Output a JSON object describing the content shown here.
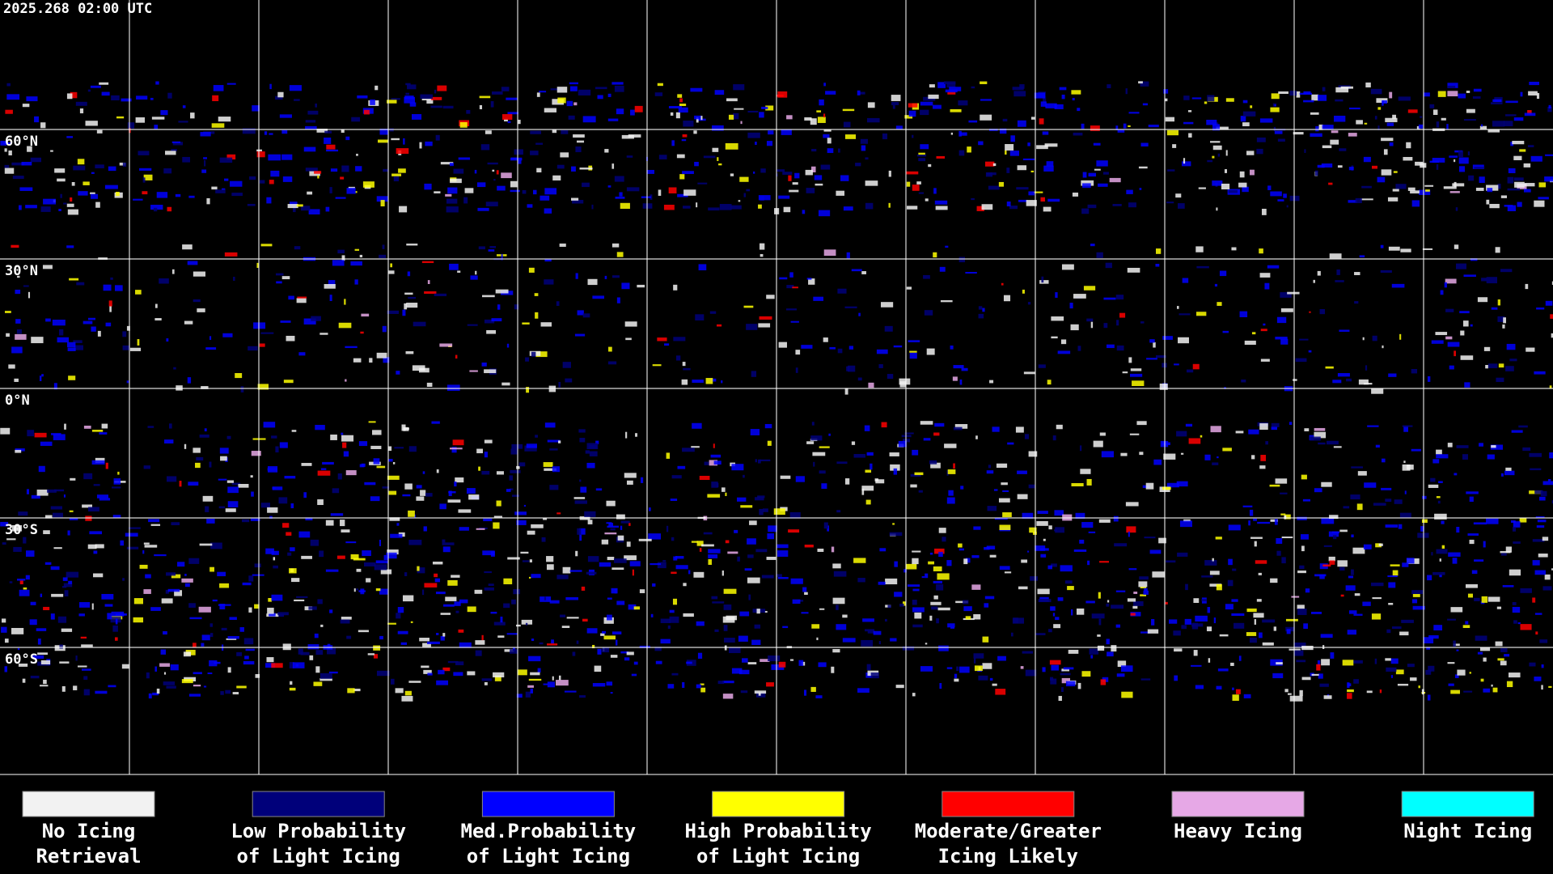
{
  "header": {
    "timestamp": "2025.268 02:00 UTC"
  },
  "latitude_labels": [
    "60°N",
    "30°N",
    "0°N",
    "30°S",
    "60°S"
  ],
  "legend": {
    "items": [
      {
        "lines": [
          "No Icing",
          "Retrieval"
        ],
        "color": "#f2f2f2"
      },
      {
        "lines": [
          "Low Probability",
          "of Light Icing"
        ],
        "color": "#00007a"
      },
      {
        "lines": [
          "Med.Probability",
          "of Light Icing"
        ],
        "color": "#0000ff"
      },
      {
        "lines": [
          "High Probability",
          "of Light Icing"
        ],
        "color": "#ffff00"
      },
      {
        "lines": [
          "Moderate/Greater",
          "Icing Likely"
        ],
        "color": "#ff0000"
      },
      {
        "lines": [
          "Heavy Icing"
        ],
        "color": "#e6a8e6"
      },
      {
        "lines": [
          "Night Icing"
        ],
        "color": "#00ffff"
      }
    ]
  }
}
